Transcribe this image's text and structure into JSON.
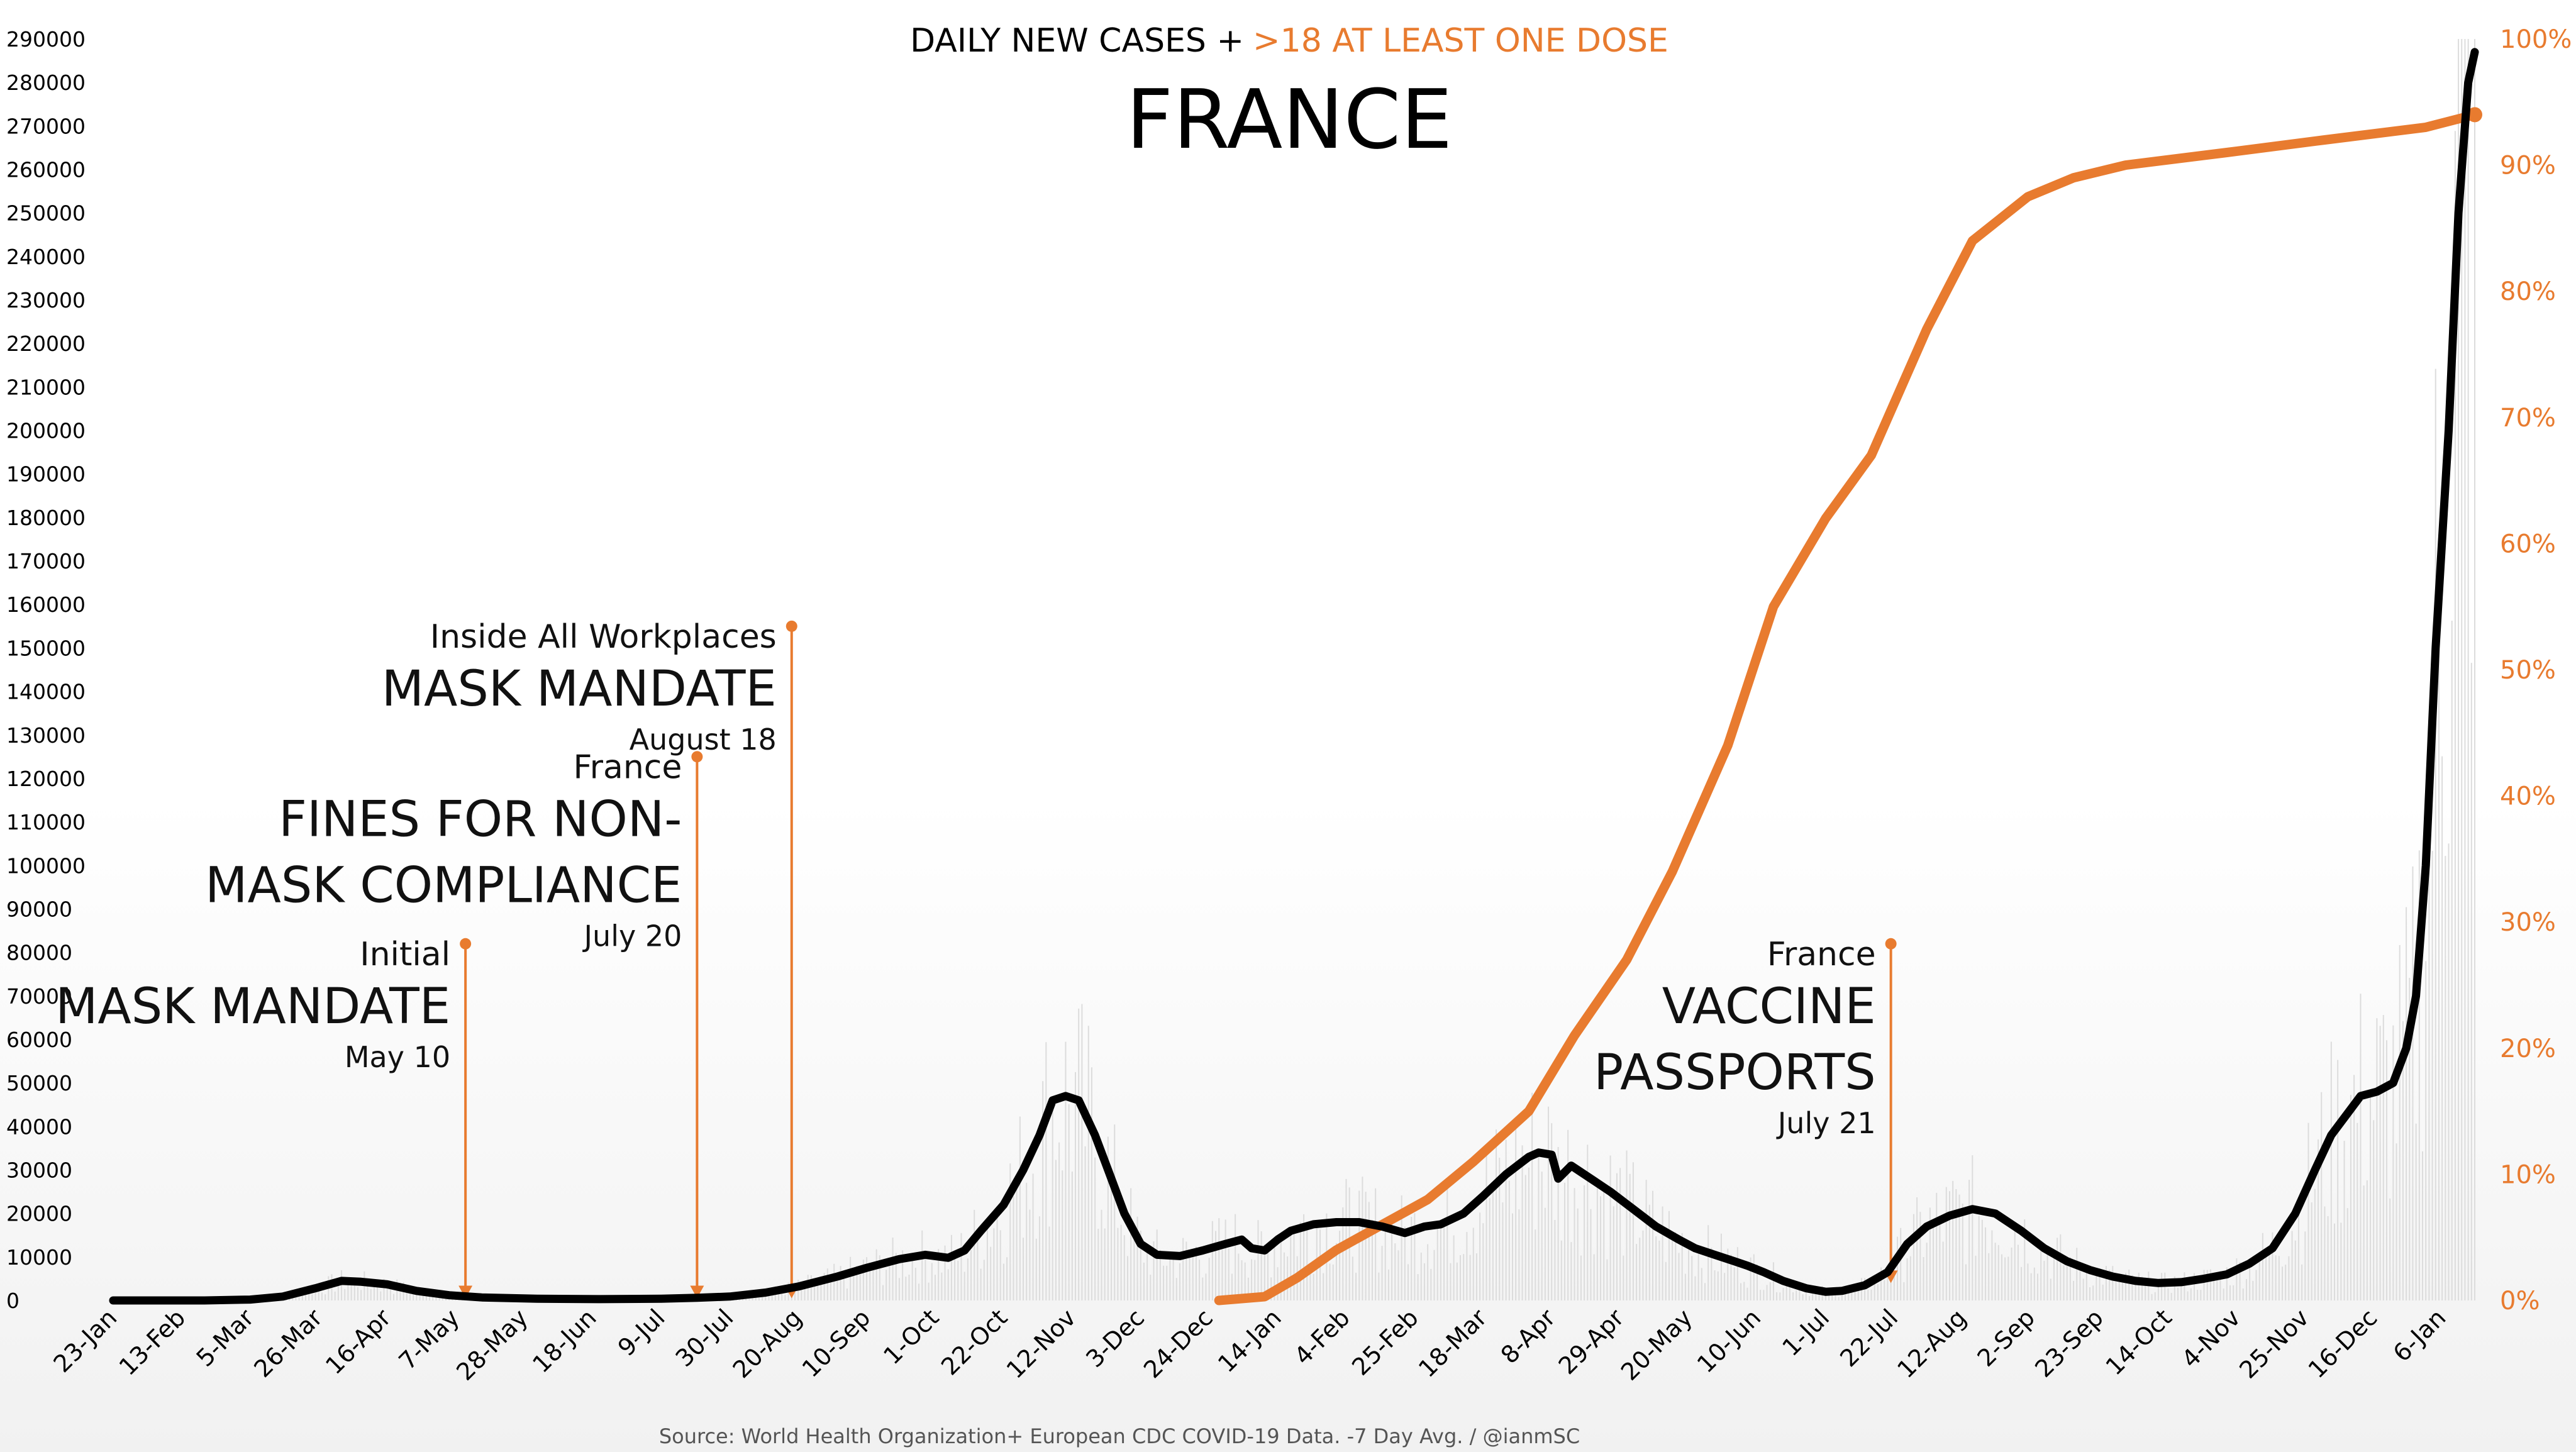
{
  "chart_data": {
    "type": "line",
    "title_part1": "DAILY NEW CASES +",
    "title_part2": ">18 AT LEAST ONE DOSE",
    "title": "FRANCE",
    "source": "Source: World Health Organization+ European CDC COVID-19 Data. -7 Day Avg. / @ianmSC",
    "colors": {
      "cases": "#000000",
      "vaccine": "#e87b2f",
      "bars": "#dcdcdc"
    },
    "x_start_date": "2020-01-23",
    "x_end_date": "2022-01-16",
    "x_tick_labels": [
      "23-Jan",
      "13-Feb",
      "5-Mar",
      "26-Mar",
      "16-Apr",
      "7-May",
      "28-May",
      "18-Jun",
      "9-Jul",
      "30-Jul",
      "20-Aug",
      "10-Sep",
      "1-Oct",
      "22-Oct",
      "12-Nov",
      "3-Dec",
      "24-Dec",
      "14-Jan",
      "4-Feb",
      "25-Feb",
      "18-Mar",
      "8-Apr",
      "29-Apr",
      "20-May",
      "10-Jun",
      "1-Jul",
      "22-Jul",
      "12-Aug",
      "2-Sep",
      "23-Sep",
      "14-Oct",
      "4-Nov",
      "25-Nov",
      "16-Dec",
      "6-Jan"
    ],
    "y_left": {
      "min": 0,
      "max": 290000,
      "step": 10000
    },
    "y_right": {
      "min": 0,
      "max": 100,
      "step": 10,
      "unit": "%"
    },
    "series": [
      {
        "axis": "left",
        "points": [
          [
            "2020-01-23",
            0
          ],
          [
            "2020-02-20",
            0
          ],
          [
            "2020-03-05",
            200
          ],
          [
            "2020-03-15",
            900
          ],
          [
            "2020-03-25",
            2800
          ],
          [
            "2020-04-02",
            4500
          ],
          [
            "2020-04-08",
            4300
          ],
          [
            "2020-04-16",
            3700
          ],
          [
            "2020-04-25",
            2200
          ],
          [
            "2020-05-05",
            1200
          ],
          [
            "2020-05-15",
            700
          ],
          [
            "2020-06-01",
            400
          ],
          [
            "2020-06-20",
            300
          ],
          [
            "2020-07-09",
            400
          ],
          [
            "2020-07-20",
            600
          ],
          [
            "2020-07-30",
            900
          ],
          [
            "2020-08-10",
            1800
          ],
          [
            "2020-08-20",
            3200
          ],
          [
            "2020-09-01",
            5500
          ],
          [
            "2020-09-10",
            7500
          ],
          [
            "2020-09-20",
            9500
          ],
          [
            "2020-09-28",
            10500
          ],
          [
            "2020-10-05",
            9800
          ],
          [
            "2020-10-10",
            11500
          ],
          [
            "2020-10-15",
            16000
          ],
          [
            "2020-10-22",
            22000
          ],
          [
            "2020-10-28",
            30000
          ],
          [
            "2020-11-02",
            38000
          ],
          [
            "2020-11-06",
            46000
          ],
          [
            "2020-11-10",
            47000
          ],
          [
            "2020-11-14",
            46000
          ],
          [
            "2020-11-19",
            38000
          ],
          [
            "2020-11-24",
            28000
          ],
          [
            "2020-11-28",
            20000
          ],
          [
            "2020-12-03",
            13000
          ],
          [
            "2020-12-08",
            10500
          ],
          [
            "2020-12-15",
            10200
          ],
          [
            "2020-12-22",
            11500
          ],
          [
            "2020-12-29",
            13000
          ],
          [
            "2021-01-03",
            14000
          ],
          [
            "2021-01-06",
            12000
          ],
          [
            "2021-01-10",
            11500
          ],
          [
            "2021-01-14",
            14000
          ],
          [
            "2021-01-18",
            16000
          ],
          [
            "2021-01-25",
            17500
          ],
          [
            "2021-02-01",
            18000
          ],
          [
            "2021-02-08",
            18000
          ],
          [
            "2021-02-15",
            17000
          ],
          [
            "2021-02-22",
            15500
          ],
          [
            "2021-02-28",
            17000
          ],
          [
            "2021-03-05",
            17500
          ],
          [
            "2021-03-12",
            20000
          ],
          [
            "2021-03-18",
            24000
          ],
          [
            "2021-03-25",
            29000
          ],
          [
            "2021-04-01",
            33000
          ],
          [
            "2021-04-04",
            34000
          ],
          [
            "2021-04-08",
            33500
          ],
          [
            "2021-04-10",
            28000
          ],
          [
            "2021-04-14",
            31000
          ],
          [
            "2021-04-20",
            28000
          ],
          [
            "2021-04-26",
            25000
          ],
          [
            "2021-05-03",
            21000
          ],
          [
            "2021-05-10",
            17000
          ],
          [
            "2021-05-17",
            14000
          ],
          [
            "2021-05-22",
            12000
          ],
          [
            "2021-05-28",
            10500
          ],
          [
            "2021-06-03",
            9000
          ],
          [
            "2021-06-07",
            8000
          ],
          [
            "2021-06-12",
            6500
          ],
          [
            "2021-06-18",
            4500
          ],
          [
            "2021-06-25",
            2800
          ],
          [
            "2021-07-01",
            2000
          ],
          [
            "2021-07-06",
            2200
          ],
          [
            "2021-07-13",
            3500
          ],
          [
            "2021-07-20",
            6500
          ],
          [
            "2021-07-26",
            13000
          ],
          [
            "2021-08-01",
            17000
          ],
          [
            "2021-08-08",
            19500
          ],
          [
            "2021-08-15",
            21000
          ],
          [
            "2021-08-22",
            20000
          ],
          [
            "2021-08-30",
            16000
          ],
          [
            "2021-09-06",
            12000
          ],
          [
            "2021-09-13",
            9000
          ],
          [
            "2021-09-20",
            7000
          ],
          [
            "2021-09-27",
            5500
          ],
          [
            "2021-10-04",
            4500
          ],
          [
            "2021-10-11",
            4000
          ],
          [
            "2021-10-18",
            4200
          ],
          [
            "2021-10-25",
            5000
          ],
          [
            "2021-11-01",
            6000
          ],
          [
            "2021-11-08",
            8500
          ],
          [
            "2021-11-15",
            12000
          ],
          [
            "2021-11-22",
            20000
          ],
          [
            "2021-11-28",
            30000
          ],
          [
            "2021-12-03",
            38000
          ],
          [
            "2021-12-08",
            43000
          ],
          [
            "2021-12-12",
            47000
          ],
          [
            "2021-12-17",
            48000
          ],
          [
            "2021-12-22",
            50000
          ],
          [
            "2021-12-26",
            58000
          ],
          [
            "2021-12-29",
            70000
          ],
          [
            "2022-01-01",
            100000
          ],
          [
            "2022-01-04",
            150000
          ],
          [
            "2022-01-08",
            200000
          ],
          [
            "2022-01-11",
            250000
          ],
          [
            "2022-01-14",
            280000
          ],
          [
            "2022-01-16",
            287000
          ]
        ]
      },
      {
        "axis": "right",
        "points": [
          [
            "2020-12-27",
            0
          ],
          [
            "2021-01-10",
            0.3
          ],
          [
            "2021-01-20",
            1.8
          ],
          [
            "2021-02-01",
            4
          ],
          [
            "2021-02-15",
            6
          ],
          [
            "2021-03-01",
            8
          ],
          [
            "2021-03-15",
            11
          ],
          [
            "2021-04-01",
            15
          ],
          [
            "2021-04-15",
            21
          ],
          [
            "2021-05-01",
            27
          ],
          [
            "2021-05-15",
            34
          ],
          [
            "2021-06-01",
            44
          ],
          [
            "2021-06-15",
            55
          ],
          [
            "2021-07-01",
            62
          ],
          [
            "2021-07-15",
            67
          ],
          [
            "2021-08-01",
            77
          ],
          [
            "2021-08-15",
            84
          ],
          [
            "2021-09-01",
            87.5
          ],
          [
            "2021-09-15",
            89
          ],
          [
            "2021-10-01",
            90
          ],
          [
            "2021-11-01",
            91
          ],
          [
            "2021-12-01",
            92
          ],
          [
            "2022-01-01",
            93
          ],
          [
            "2022-01-16",
            94
          ]
        ]
      }
    ],
    "annotations": [
      {
        "small": "Initial",
        "lines": [
          "MASK MANDATE"
        ],
        "date_label": "May 10",
        "date": "2020-05-10",
        "top_value": 82000
      },
      {
        "small": "France",
        "lines": [
          "FINES FOR NON-",
          "MASK COMPLIANCE"
        ],
        "date_label": "July 20",
        "date": "2020-07-20",
        "top_value": 125000
      },
      {
        "small": "Inside All Workplaces",
        "lines": [
          "MASK MANDATE"
        ],
        "date_label": "August 18",
        "date": "2020-08-18",
        "top_value": 155000
      },
      {
        "small": "France",
        "lines": [
          "VACCINE",
          "PASSPORTS"
        ],
        "date_label": "July 21",
        "date": "2021-07-21",
        "top_value": 82000
      }
    ]
  }
}
